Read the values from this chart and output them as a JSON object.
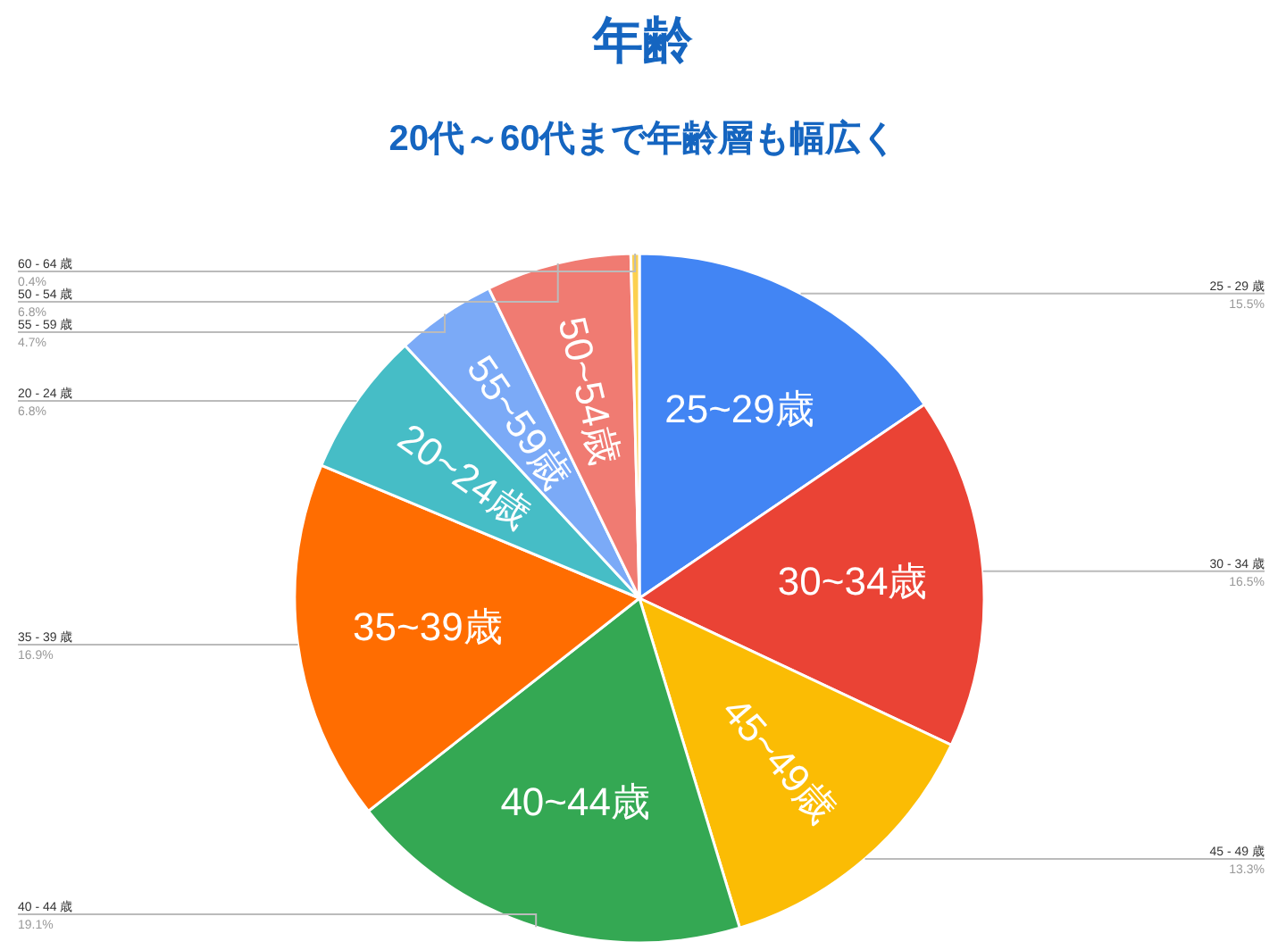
{
  "chart_data": {
    "type": "pie",
    "title": "年齢",
    "subtitle": "20代～60代まで年齢層も幅広く",
    "categories": [
      "25 - 29 歳",
      "30 - 34 歳",
      "45 - 49 歳",
      "40 - 44 歳",
      "35 - 39 歳",
      "20 - 24 歳",
      "55 - 59 歳",
      "50 - 54 歳",
      "60 - 64 歳"
    ],
    "values": [
      15.5,
      16.5,
      13.3,
      19.1,
      16.9,
      6.8,
      4.7,
      6.8,
      0.4
    ],
    "colors": [
      "#4285f4",
      "#ea4335",
      "#fbbc04",
      "#34a853",
      "#ff6d01",
      "#46bdc6",
      "#7baaf7",
      "#f07b72",
      "#fcd04f"
    ],
    "value_labels": [
      "15.5%",
      "16.5%",
      "13.3%",
      "19.1%",
      "16.9%",
      "6.8%",
      "4.7%",
      "6.8%",
      "0.4%"
    ],
    "annotations": [
      {
        "text": "25~29歳",
        "x": "25 - 29 歳"
      },
      {
        "text": "30~34歳",
        "x": "30 - 34 歳"
      },
      {
        "text": "45~49歳",
        "x": "45 - 49 歳"
      },
      {
        "text": "40~44歳",
        "x": "40 - 44 歳"
      },
      {
        "text": "35~39歳",
        "x": "35 - 39 歳"
      },
      {
        "text": "20~24歳",
        "x": "20 - 24 歳"
      },
      {
        "text": "55~59歳",
        "x": "55 - 59 歳"
      },
      {
        "text": "50~54歳",
        "x": "50 - 54 歳"
      }
    ]
  }
}
